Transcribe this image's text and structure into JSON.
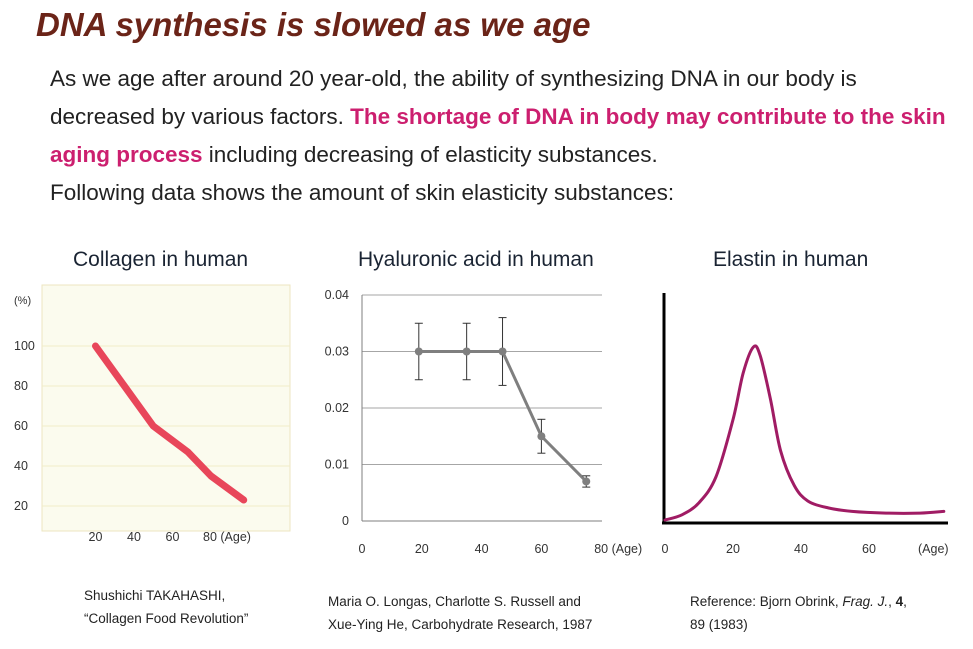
{
  "header": {
    "title": "DNA synthesis is slowed as we age",
    "intro_1": "As we age after around 20 year-old, the ability of synthesizing DNA in our body is decreased by various factors. ",
    "intro_highlight": "The shortage of DNA in body may contribute to the skin aging process",
    "intro_2": " including decreasing of elasticity substances.",
    "intro_3": "Following data shows the amount of skin elasticity substances:"
  },
  "colors": {
    "title": "#6b2418",
    "highlight": "#cc1f6f",
    "collagen_line": "#e8465a",
    "hyaluronic_line": "#7f7f7f",
    "elastin_line": "#a01c64"
  },
  "chart_data": [
    {
      "type": "line",
      "title": "Collagen in human",
      "ylabel": "(%)",
      "y_ticks": [
        "100",
        "80",
        "60",
        "40",
        "20"
      ],
      "x_ticks": [
        "20",
        "40",
        "60",
        "80 (Age)"
      ],
      "x": [
        20,
        50,
        68,
        80,
        97
      ],
      "values": [
        100,
        60,
        47,
        35,
        23
      ],
      "ylim": [
        10,
        110
      ],
      "grid": true,
      "reference": [
        "Shushichi TAKAHASHI,",
        "“Collagen Food Revolution”"
      ]
    },
    {
      "type": "line",
      "title": "Hyaluronic acid in human",
      "y_ticks": [
        "0.04",
        "0.03",
        "0.02",
        "0.01",
        "0"
      ],
      "x_ticks": [
        "0",
        "20",
        "40",
        "60",
        "80 (Age)"
      ],
      "x": [
        19,
        35,
        47,
        60,
        75
      ],
      "values": [
        0.03,
        0.03,
        0.03,
        0.015,
        0.007
      ],
      "error": [
        0.005,
        0.005,
        0.006,
        0.003,
        0.001
      ],
      "ylim": [
        0,
        0.04
      ],
      "xlim": [
        0,
        80
      ],
      "grid": true,
      "reference": [
        "Maria O. Longas, Charlotte S. Russell and",
        "Xue-Ying He, Carbohydrate Research, 1987"
      ]
    },
    {
      "type": "line",
      "title": "Elastin in human",
      "x_ticks": [
        "0",
        "20",
        "40",
        "60",
        "(Age)"
      ],
      "x": [
        0,
        5,
        10,
        15,
        20,
        23,
        26,
        28,
        31,
        34,
        38,
        42,
        48,
        55,
        65,
        75,
        82
      ],
      "values": [
        0.0,
        0.03,
        0.1,
        0.25,
        0.58,
        0.85,
        1.0,
        0.95,
        0.7,
        0.4,
        0.2,
        0.11,
        0.07,
        0.05,
        0.04,
        0.04,
        0.05
      ],
      "xlim": [
        0,
        85
      ],
      "grid": false,
      "reference_prefix": "Reference: Bjorn Obrink, ",
      "reference_journal": "Frag. J.",
      "reference_mid": ", ",
      "reference_volume": "4",
      "reference_suffix": ",",
      "reference_line2": "89 (1983)"
    }
  ]
}
